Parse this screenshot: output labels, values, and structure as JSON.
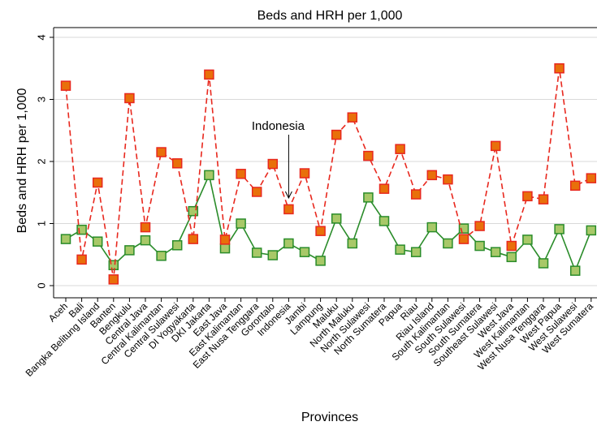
{
  "chart_data": {
    "type": "line",
    "title": "Beds and HRH per 1,000",
    "xlabel": "Provinces",
    "ylabel": "Beds and HRH per 1,000",
    "ylim": [
      0,
      4
    ],
    "yticks": [
      0,
      1,
      2,
      3,
      4
    ],
    "grid": true,
    "categories": [
      "Aceh",
      "Bali",
      "Bangka Belitung Island",
      "Banten",
      "Bengkulu",
      "Central Java",
      "Central Kalimantan",
      "Central Sulawesi",
      "DI Yogyakarta",
      "DKI Jakarta",
      "East Java",
      "East Kalimantan",
      "East Nusa Tenggara",
      "Gorontalo",
      "Indonesia",
      "Jambi",
      "Lampung",
      "Maluku",
      "North Maluku",
      "North Sulawesi",
      "North Sumatera",
      "Papua",
      "Riau",
      "Riau Island",
      "South Kalimantan",
      "South Sulawesi",
      "South Sumatera",
      "Southeast Sulawesi",
      "West Java",
      "West Kalimantan",
      "West Nusa Tenggara",
      "West Papua",
      "West Sulawesi",
      "West Sumatera"
    ],
    "series": [
      {
        "key": "red",
        "color": "#e8281e",
        "marker_fill": "#e8700a",
        "line_style": "dashed",
        "values": [
          3.22,
          0.42,
          1.66,
          0.1,
          3.02,
          0.94,
          2.15,
          1.97,
          0.75,
          3.4,
          0.74,
          1.8,
          1.51,
          1.96,
          1.23,
          1.81,
          0.88,
          2.43,
          2.71,
          2.09,
          1.56,
          2.2,
          1.47,
          1.78,
          1.71,
          0.75,
          0.96,
          2.25,
          0.64,
          1.44,
          1.39,
          3.5,
          1.61,
          1.73
        ]
      },
      {
        "key": "green",
        "color": "#2a8c2a",
        "marker_fill": "#a8c868",
        "line_style": "solid",
        "values": [
          0.75,
          0.9,
          0.71,
          0.33,
          0.57,
          0.73,
          0.48,
          0.65,
          1.2,
          1.78,
          0.6,
          1.0,
          0.53,
          0.49,
          0.68,
          0.54,
          0.4,
          1.08,
          0.68,
          1.42,
          1.04,
          0.58,
          0.54,
          0.94,
          0.68,
          0.92,
          0.64,
          0.54,
          0.46,
          0.74,
          0.36,
          0.91,
          0.24,
          0.89
        ]
      }
    ],
    "annotation": {
      "text": "Indonesia",
      "category": "Indonesia"
    }
  }
}
